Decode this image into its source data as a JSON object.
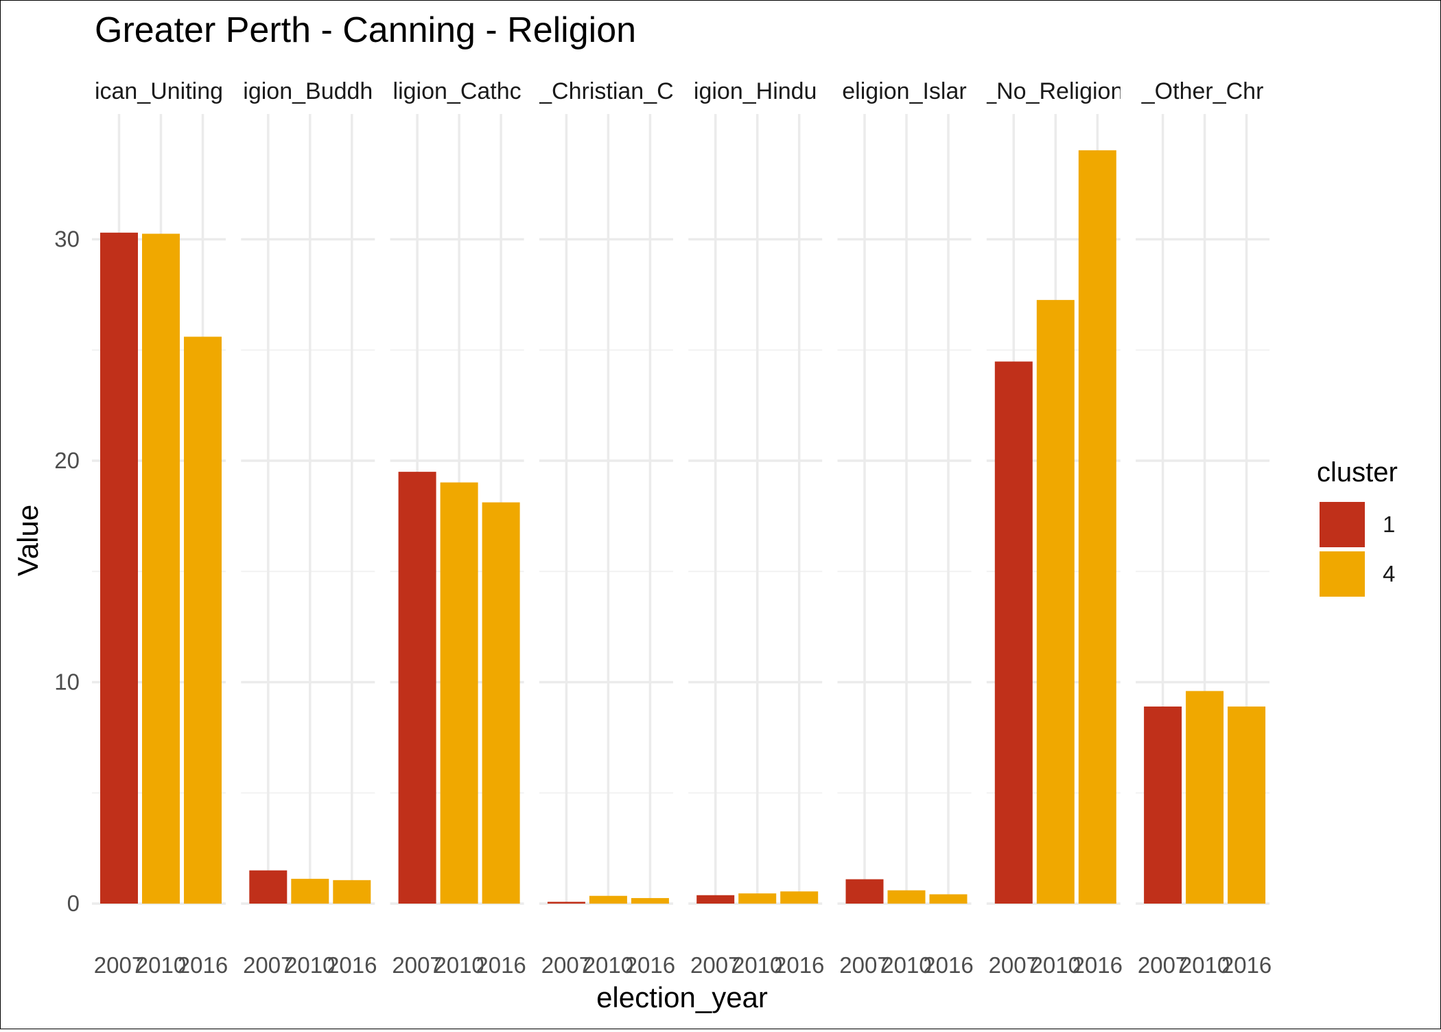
{
  "chart_data": {
    "type": "bar",
    "title": "Greater Perth - Canning - Religion",
    "xlabel": "election_year",
    "ylabel": "Value",
    "ylim": [
      0,
      35
    ],
    "y_ticks": [
      0,
      10,
      20,
      30
    ],
    "categories": [
      "2007",
      "2010",
      "2016"
    ],
    "bar_cluster": [
      "1",
      "4",
      "4"
    ],
    "facets": [
      {
        "label": "ican_Uniting",
        "values": [
          30.3,
          30.25,
          25.6
        ]
      },
      {
        "label": "igion_Buddh",
        "values": [
          1.5,
          1.12,
          1.06
        ]
      },
      {
        "label": "ligion_Cathc",
        "values": [
          19.5,
          19.02,
          18.12
        ]
      },
      {
        "label": "_Christian_C",
        "values": [
          0.08,
          0.35,
          0.25
        ]
      },
      {
        "label": "igion_Hindu",
        "values": [
          0.38,
          0.46,
          0.55
        ]
      },
      {
        "label": "eligion_Islar",
        "values": [
          1.1,
          0.6,
          0.42
        ]
      },
      {
        "label": "_No_Religion",
        "values": [
          24.48,
          27.26,
          34.02
        ]
      },
      {
        "label": "_Other_Chr",
        "values": [
          8.9,
          9.6,
          8.9
        ]
      }
    ],
    "legend": {
      "title": "cluster",
      "placement": "right",
      "entries": [
        {
          "label": "1",
          "color": "#C0301A"
        },
        {
          "label": "4",
          "color": "#F0A800"
        }
      ]
    },
    "grid": true
  }
}
